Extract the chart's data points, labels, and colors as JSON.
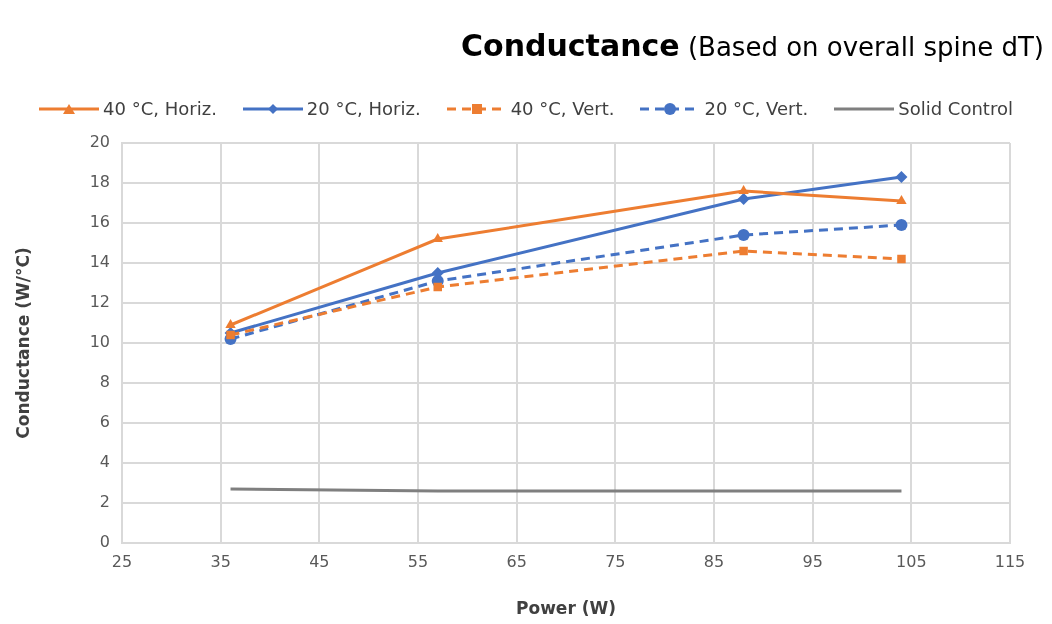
{
  "chart_data": {
    "type": "line",
    "title": "Conductance",
    "subtitle": "(Based on overall spine dT)",
    "xlabel": "Power (W)",
    "ylabel": "Conductance (W/°C)",
    "x": [
      36,
      57,
      88,
      104
    ],
    "series": [
      {
        "name": "40 °C, Horiz.",
        "color": "#ed7d31",
        "values": [
          10.9,
          15.2,
          17.6,
          17.1
        ],
        "marker": "triangle",
        "line_style": "solid"
      },
      {
        "name": "20 °C, Horiz.",
        "color": "#4472c4",
        "values": [
          10.5,
          13.5,
          17.2,
          18.3
        ],
        "marker": "diamond",
        "line_style": "solid"
      },
      {
        "name": "40 °C, Vert.",
        "color": "#ed7d31",
        "values": [
          10.4,
          12.8,
          14.6,
          14.2
        ],
        "marker": "square",
        "line_style": "dashed"
      },
      {
        "name": "20 °C, Vert.",
        "color": "#4472c4",
        "values": [
          10.2,
          13.1,
          15.4,
          15.9
        ],
        "marker": "circle",
        "line_style": "dashed"
      },
      {
        "name": "Solid Control",
        "color": "#7f7f7f",
        "values": [
          2.7,
          2.6,
          2.6,
          2.6
        ],
        "marker": "none",
        "line_style": "solid"
      }
    ],
    "xlim": [
      25,
      115
    ],
    "xticks": [
      25,
      35,
      45,
      55,
      65,
      75,
      85,
      95,
      105,
      115
    ],
    "ylim": [
      0,
      20
    ],
    "yticks": [
      0,
      2,
      4,
      6,
      8,
      10,
      12,
      14,
      16,
      18,
      20
    ],
    "grid": true,
    "legend": "top"
  }
}
